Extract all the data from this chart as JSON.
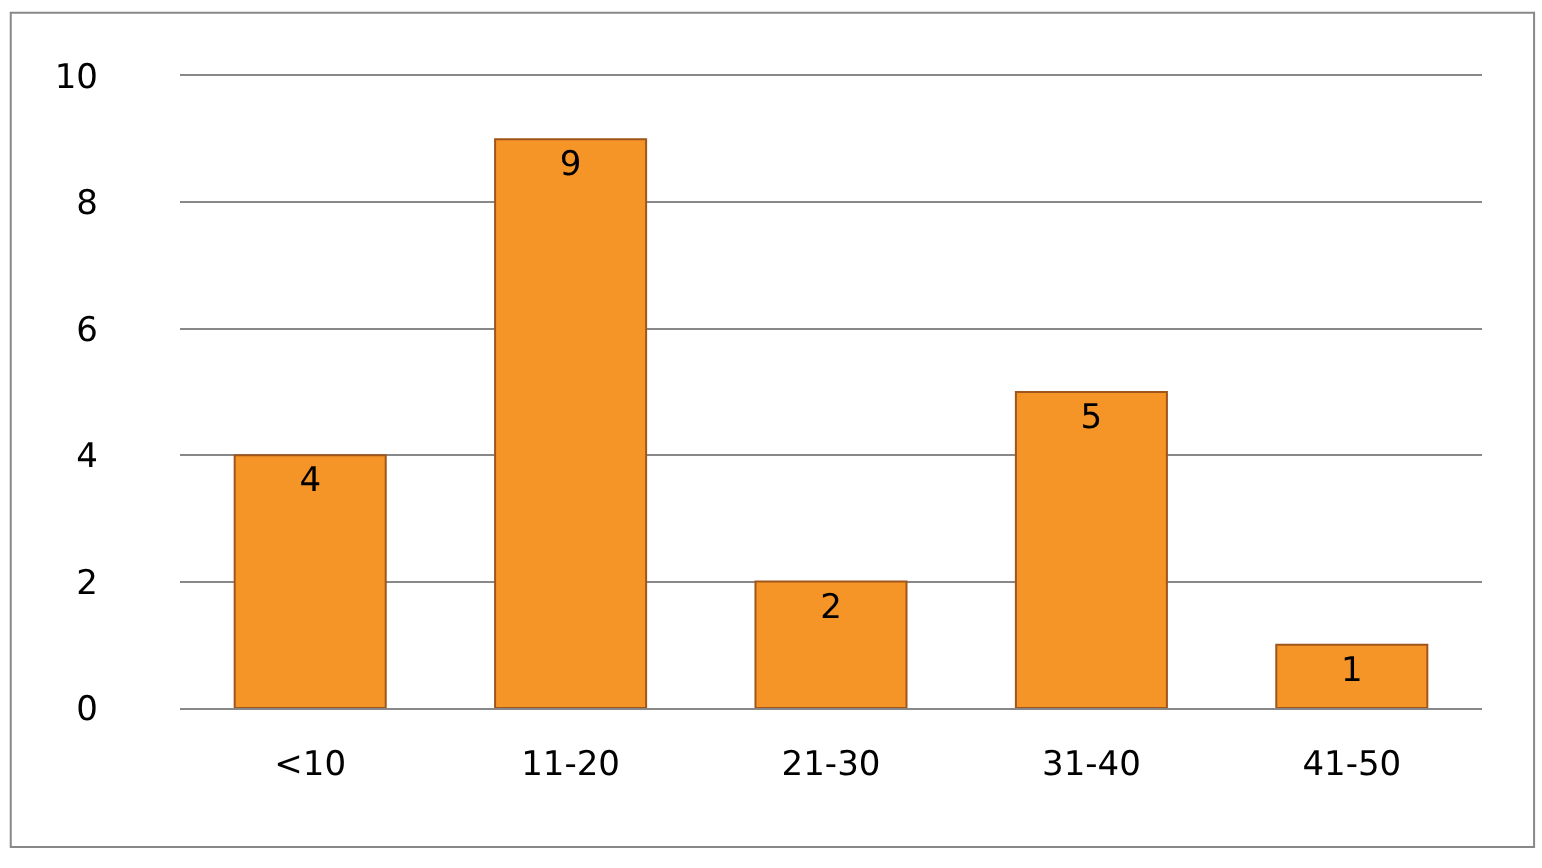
{
  "chart_data": {
    "type": "bar",
    "categories": [
      "<10",
      "11-20",
      "21-30",
      "31-40",
      "41-50"
    ],
    "values": [
      4,
      9,
      2,
      5,
      1
    ],
    "color": "#f59427",
    "ylim": [
      0,
      10
    ],
    "yticks": [
      0,
      2,
      4,
      6,
      8,
      10
    ],
    "grid": "y",
    "data_labels": true
  }
}
